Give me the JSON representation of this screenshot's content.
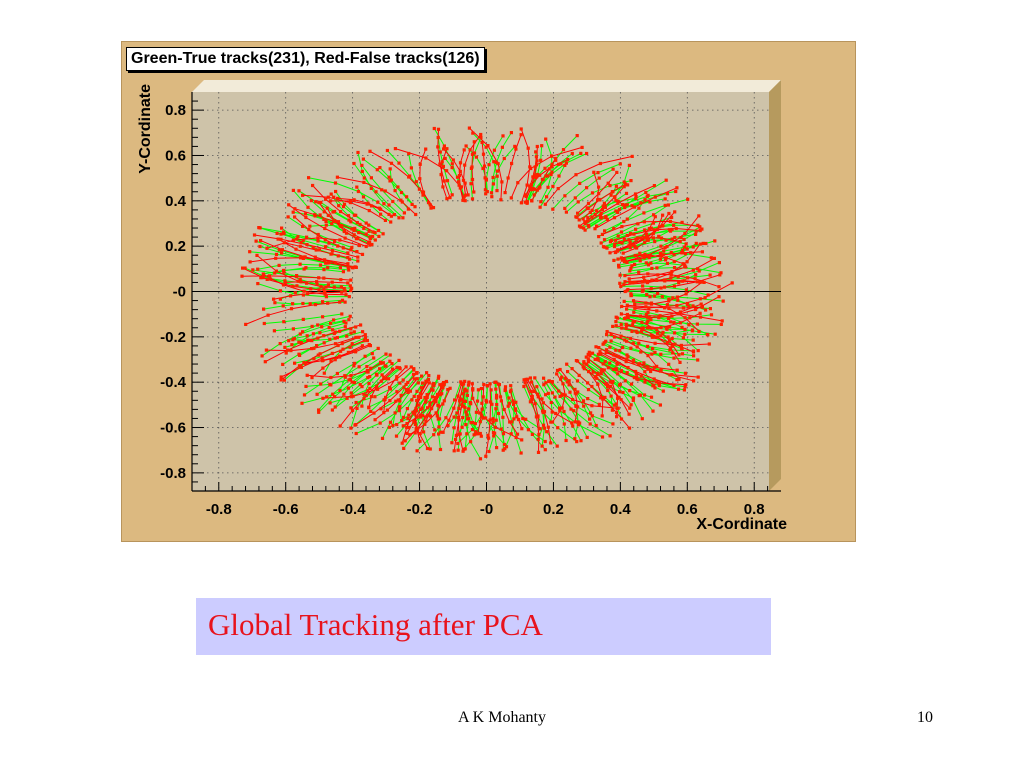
{
  "chart_data": {
    "type": "scatter",
    "title": "Green-True tracks(231), Red-False tracks(126)",
    "xlabel": "X-Cordinate",
    "ylabel": "Y-Cordinate",
    "xlim": [
      -0.88,
      0.88
    ],
    "ylim": [
      -0.88,
      0.88
    ],
    "xticks": [
      "-0.8",
      "-0.6",
      "-0.4",
      "-0.2",
      "-0",
      "0.2",
      "0.4",
      "0.6",
      "0.8"
    ],
    "yticks": [
      "0.8",
      "0.6",
      "0.4",
      "0.2",
      "-0",
      "-0.2",
      "-0.4",
      "-0.6",
      "-0.8"
    ],
    "grid": true,
    "series": [
      {
        "name": "Green-True tracks",
        "count": 231,
        "color": "#00ff00"
      },
      {
        "name": "Red-False tracks",
        "count": 126,
        "color": "#ff0000"
      }
    ],
    "ring": {
      "inner_rx": 0.4,
      "inner_ry": 0.4,
      "outer_rx": 0.73,
      "outer_ry": 0.74
    },
    "colors": {
      "frame": "#dcb980",
      "plot_area": "#cec3a9",
      "point": "#ff2000",
      "hit_fill": "#8a8a30"
    }
  },
  "caption": "Global Tracking after PCA",
  "footer": {
    "author": "A K Mohanty",
    "page": "10"
  }
}
